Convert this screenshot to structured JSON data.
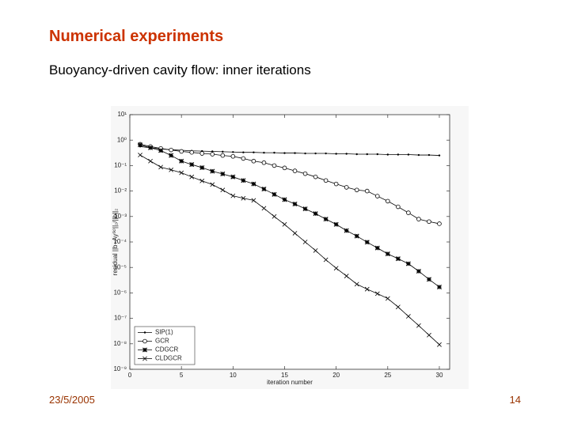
{
  "slide": {
    "title": "Numerical experiments",
    "subtitle": "Buoyancy-driven cavity flow: inner iterations",
    "date": "23/5/2005",
    "page": "14"
  },
  "chart_data": {
    "type": "line",
    "log_y": true,
    "legend": "lower left",
    "xlabel": "iteration number",
    "ylabel": "residual ||b−Ay⁽ᵏ⁾||₂/||b||₂",
    "xlim": [
      0,
      31
    ],
    "xticks": [
      0,
      5,
      10,
      15,
      20,
      25,
      30
    ],
    "ylim": [
      1e-09,
      10
    ],
    "yticks": [
      {
        "value": 10,
        "label": "10¹"
      },
      {
        "value": 1,
        "label": "10⁰"
      },
      {
        "value": 0.1,
        "label": "10⁻¹"
      },
      {
        "value": 0.01,
        "label": "10⁻²"
      },
      {
        "value": 0.001,
        "label": "10⁻³"
      },
      {
        "value": 0.0001,
        "label": "10⁻⁴"
      },
      {
        "value": 1e-05,
        "label": "10⁻⁵"
      },
      {
        "value": 1e-06,
        "label": "10⁻⁶"
      },
      {
        "value": 1e-07,
        "label": "10⁻⁷"
      },
      {
        "value": 1e-08,
        "label": "10⁻⁸"
      },
      {
        "value": 1e-09,
        "label": "10⁻⁹"
      }
    ],
    "x": [
      1,
      2,
      3,
      4,
      5,
      6,
      7,
      8,
      9,
      10,
      11,
      12,
      13,
      14,
      15,
      16,
      17,
      18,
      19,
      20,
      21,
      22,
      23,
      24,
      25,
      26,
      27,
      28,
      29,
      30
    ],
    "series": [
      {
        "name": "SIP(1)",
        "color": "#000000",
        "marker": "dot",
        "values": [
          0.56,
          0.5,
          0.45,
          0.42,
          0.4,
          0.38,
          0.37,
          0.36,
          0.35,
          0.34,
          0.33,
          0.33,
          0.32,
          0.32,
          0.31,
          0.31,
          0.3,
          0.3,
          0.3,
          0.29,
          0.29,
          0.28,
          0.28,
          0.28,
          0.27,
          0.27,
          0.27,
          0.26,
          0.26,
          0.25
        ]
      },
      {
        "name": "GCR",
        "color": "#000000",
        "marker": "circle",
        "values": [
          0.69,
          0.56,
          0.47,
          0.41,
          0.36,
          0.33,
          0.3,
          0.28,
          0.25,
          0.23,
          0.19,
          0.15,
          0.13,
          0.1,
          0.081,
          0.062,
          0.048,
          0.036,
          0.026,
          0.019,
          0.014,
          0.011,
          0.01,
          0.0063,
          0.004,
          0.0024,
          0.0014,
          0.00079,
          0.00063,
          0.00052
        ]
      },
      {
        "name": "CDGCR",
        "color": "#000000",
        "marker": "star",
        "values": [
          0.65,
          0.5,
          0.39,
          0.25,
          0.15,
          0.11,
          0.083,
          0.06,
          0.047,
          0.036,
          0.026,
          0.019,
          0.012,
          0.0074,
          0.0046,
          0.0031,
          0.002,
          0.0013,
          0.00079,
          0.00049,
          0.00028,
          0.00017,
          9.8e-05,
          5.8e-05,
          3.4e-05,
          2.2e-05,
          1.4e-05,
          7.1e-06,
          3.4e-06,
          1.7e-06
        ]
      },
      {
        "name": "CLDGCR",
        "color": "#000000",
        "marker": "cross",
        "values": [
          0.26,
          0.15,
          0.087,
          0.068,
          0.052,
          0.036,
          0.025,
          0.018,
          0.011,
          0.0065,
          0.0052,
          0.0043,
          0.0021,
          0.001,
          0.00049,
          0.00022,
          0.0001,
          4.6e-05,
          2e-05,
          9.3e-06,
          4.6e-06,
          2.2e-06,
          1.4e-06,
          9.3e-07,
          6e-07,
          2.8e-07,
          1.2e-07,
          5.2e-08,
          2.2e-08,
          9.3e-09
        ]
      }
    ]
  }
}
